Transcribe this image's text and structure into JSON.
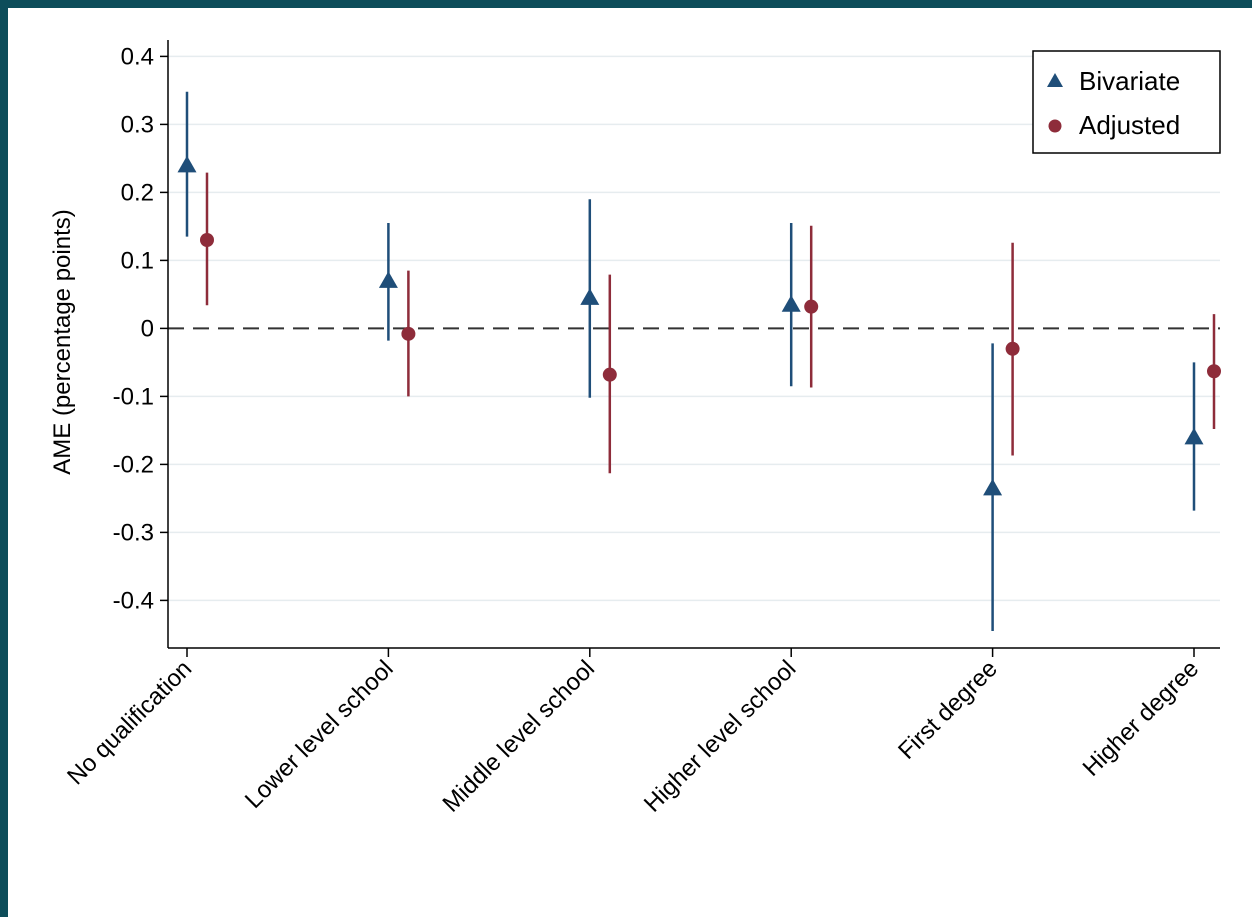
{
  "chart_data": {
    "type": "scatter",
    "subtype": "point-estimate with confidence intervals",
    "title": "",
    "xlabel": "",
    "ylabel": "AME (percentage points)",
    "ylim": [
      -0.47,
      0.43
    ],
    "yticks": [
      0.4,
      0.3,
      0.2,
      0.1,
      0,
      -0.1,
      -0.2,
      -0.3,
      -0.4
    ],
    "ytick_labels": [
      "0.4",
      "0.3",
      "0.2",
      "0.1",
      "0",
      "-0.1",
      "-0.2",
      "-0.3",
      "-0.4"
    ],
    "grid": true,
    "reference_line": {
      "y": 0,
      "style": "dashed"
    },
    "legend": {
      "position": "top-right"
    },
    "categories": [
      "No qualification",
      "Lower level school",
      "Middle level school",
      "Higher level school",
      "First degree",
      "Higher degree"
    ],
    "series": [
      {
        "name": "Bivariate",
        "marker": "triangle",
        "color": "#1f4e79",
        "values": [
          0.24,
          0.07,
          0.045,
          0.035,
          -0.235,
          -0.16
        ],
        "ci_low": [
          0.135,
          -0.018,
          -0.102,
          -0.085,
          -0.445,
          -0.268
        ],
        "ci_high": [
          0.348,
          0.155,
          0.19,
          0.155,
          -0.022,
          -0.05
        ]
      },
      {
        "name": "Adjusted",
        "marker": "circle",
        "color": "#8e2c3a",
        "values": [
          0.13,
          -0.008,
          -0.068,
          0.032,
          -0.03,
          -0.063
        ],
        "ci_low": [
          0.034,
          -0.1,
          -0.213,
          -0.087,
          -0.187,
          -0.148
        ],
        "ci_high": [
          0.229,
          0.085,
          0.079,
          0.151,
          0.126,
          0.021
        ]
      }
    ]
  }
}
